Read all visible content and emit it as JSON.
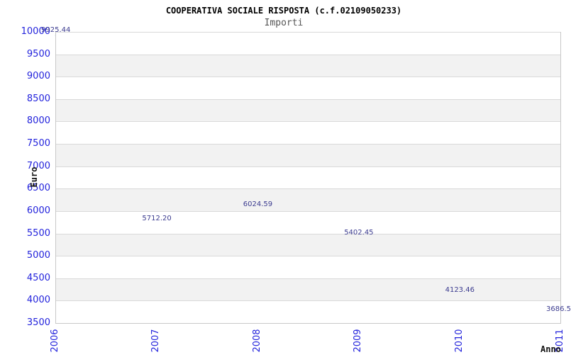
{
  "chart_data": {
    "type": "line",
    "title": "COOPERATIVA SOCIALE RISPOSTA (c.f.02109050233)",
    "subtitle": "Importi",
    "xlabel": "Anno",
    "ylabel": "Euro",
    "x": [
      "2006",
      "2007",
      "2008",
      "2009",
      "2010",
      "2011"
    ],
    "series": [
      {
        "name": "Importi",
        "values": [
          9925.44,
          5712.2,
          6024.59,
          5402.45,
          4123.46,
          3686.5
        ]
      }
    ],
    "point_labels": [
      "9925.44",
      "5712.20",
      "6024.59",
      "5402.45",
      "4123.46",
      "3686.5"
    ],
    "ylim": [
      3500,
      10000
    ],
    "ytick_step": 500,
    "ytick_labels": [
      "10000",
      "9500",
      "9000",
      "8500",
      "8000",
      "7500",
      "7000",
      "6500",
      "6000",
      "5500",
      "5000",
      "4500",
      "4000",
      "3500"
    ],
    "grid": true,
    "legend": "none",
    "colors": {
      "line": "#78aae8",
      "point_label": "#3b3b8f",
      "tick_label": "#2323dc",
      "band_light": "#ffffff",
      "band_dark": "#f2f2f2",
      "gridline": "#d9d9d9",
      "frame": "#c8c8c8",
      "title": "#000000",
      "subtitle": "#565656"
    }
  }
}
